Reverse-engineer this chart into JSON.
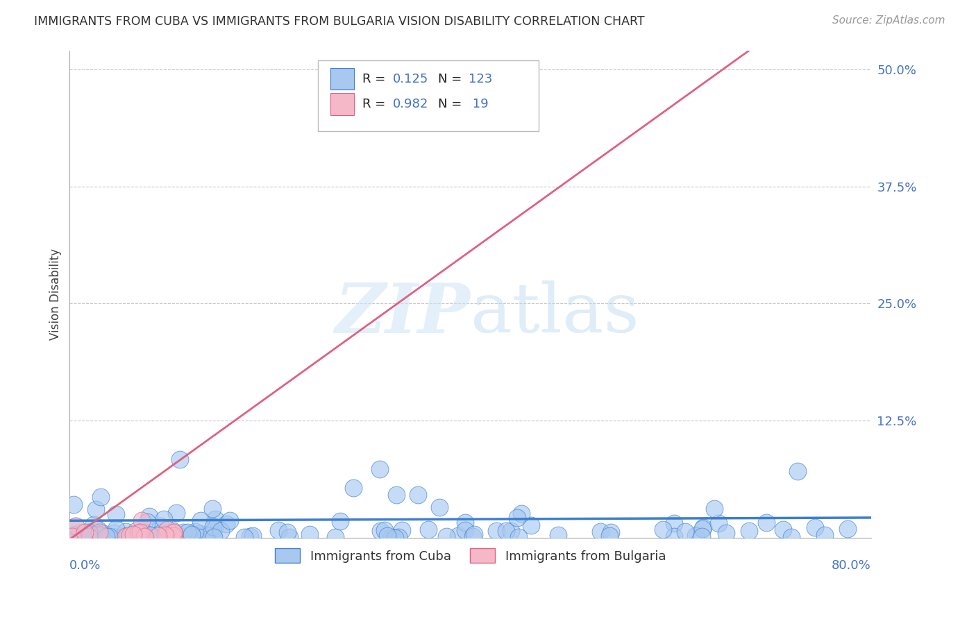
{
  "title": "IMMIGRANTS FROM CUBA VS IMMIGRANTS FROM BULGARIA VISION DISABILITY CORRELATION CHART",
  "source": "Source: ZipAtlas.com",
  "ylabel": "Vision Disability",
  "yticks": [
    0.0,
    0.125,
    0.25,
    0.375,
    0.5
  ],
  "ytick_labels": [
    "",
    "12.5%",
    "25.0%",
    "37.5%",
    "50.0%"
  ],
  "xmin": 0.0,
  "xmax": 0.8,
  "ymin": 0.0,
  "ymax": 0.52,
  "cuba_color": "#a8c8f0",
  "cuba_color_dark": "#3a7fd0",
  "bulgaria_color": "#f5b8c8",
  "bulgaria_color_dark": "#e06080",
  "cuba_R": 0.125,
  "cuba_N": 123,
  "bulgaria_R": 0.982,
  "bulgaria_N": 19,
  "legend_label_cuba": "Immigrants from Cuba",
  "legend_label_bulgaria": "Immigrants from Bulgaria",
  "title_fontsize": 12.5,
  "source_fontsize": 11,
  "axis_color": "#4472c4",
  "cuba_trend_slope": 0.004,
  "cuba_trend_intercept": 0.018,
  "bulgaria_trend_slope": 0.77,
  "bulgaria_trend_intercept": -0.002
}
